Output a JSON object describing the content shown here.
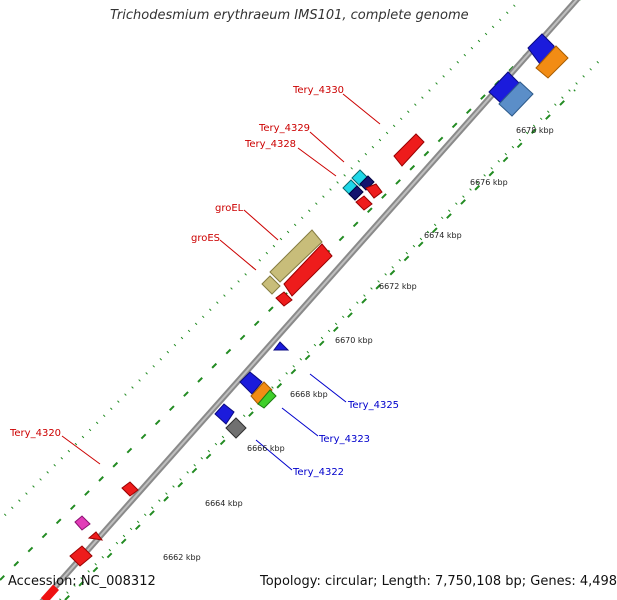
{
  "header": {
    "title": "Trichodesmium erythraeum IMS101, complete genome"
  },
  "footer": {
    "accession": "Accession: NC_008312",
    "topology": "Topology: circular; Length: 7,750,108 bp; Genes: 4,498"
  },
  "ticks": [
    "6662 kbp",
    "6664 kbp",
    "6666 kbp",
    "6668 kbp",
    "6670 kbp",
    "6672 kbp",
    "6674 kbp",
    "6676 kbp",
    "6678 kbp"
  ],
  "labels": {
    "tery_4330": "Tery_4330",
    "tery_4329": "Tery_4329",
    "tery_4328": "Tery_4328",
    "groel": "groEL",
    "groes": "groES",
    "tery_4320": "Tery_4320",
    "tery_4325": "Tery_4325",
    "tery_4323": "Tery_4323",
    "tery_4322": "Tery_4322"
  },
  "colors": {
    "highlight_label": "#cc0000",
    "normal_label": "#0000cc",
    "backbone": "#888888",
    "dots": "#228b22"
  }
}
